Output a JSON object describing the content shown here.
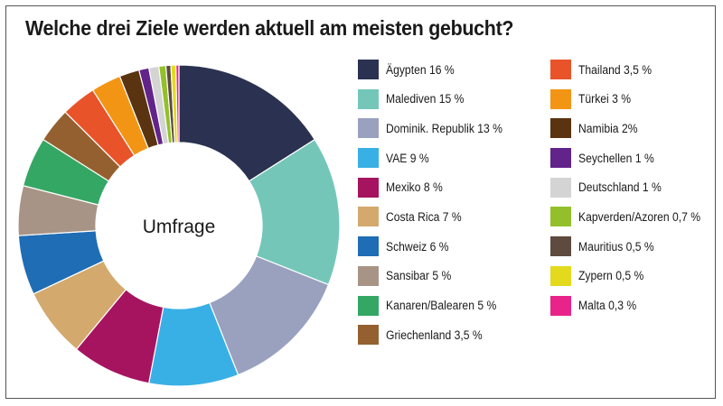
{
  "chart_data": {
    "type": "pie",
    "title": "Welche drei Ziele werden aktuell am meisten gebucht?",
    "center_label": "Umfrage",
    "slices": [
      {
        "label": "Ägypten 16 %",
        "value": 16,
        "color": "#2b3150"
      },
      {
        "label": "Malediven 15 %",
        "value": 15,
        "color": "#74c7b8"
      },
      {
        "label": "Dominik. Republik 13 %",
        "value": 13,
        "color": "#9aa1bf"
      },
      {
        "label": "VAE 9 %",
        "value": 9,
        "color": "#39b0e5"
      },
      {
        "label": "Mexiko 8 %",
        "value": 8,
        "color": "#a6145f"
      },
      {
        "label": "Costa Rica 7 %",
        "value": 7,
        "color": "#d3a96e"
      },
      {
        "label": "Schweiz 6 %",
        "value": 6,
        "color": "#1f6db5"
      },
      {
        "label": "Sansibar 5 %",
        "value": 5,
        "color": "#a89486"
      },
      {
        "label": "Kanaren/Balearen 5 %",
        "value": 5,
        "color": "#35a765"
      },
      {
        "label": "Griechenland 3,5 %",
        "value": 3.5,
        "color": "#95602f"
      },
      {
        "label": "Thailand 3,5 %",
        "value": 3.5,
        "color": "#e8532a"
      },
      {
        "label": "Türkei 3 %",
        "value": 3,
        "color": "#f39514"
      },
      {
        "label": "Namibia 2%",
        "value": 2,
        "color": "#5a3310"
      },
      {
        "label": "Seychellen 1 %",
        "value": 1,
        "color": "#62238a"
      },
      {
        "label": "Deutschland 1 %",
        "value": 1,
        "color": "#d4d4d4"
      },
      {
        "label": "Kapverden/Azoren 0,7 %",
        "value": 0.7,
        "color": "#93c02a"
      },
      {
        "label": "Mauritius 0,5 %",
        "value": 0.5,
        "color": "#5e4a3e"
      },
      {
        "label": "Zypern 0,5 %",
        "value": 0.5,
        "color": "#e4da1d"
      },
      {
        "label": "Malta 0,3 %",
        "value": 0.3,
        "color": "#e8238a"
      }
    ],
    "legend_placement": "right"
  }
}
